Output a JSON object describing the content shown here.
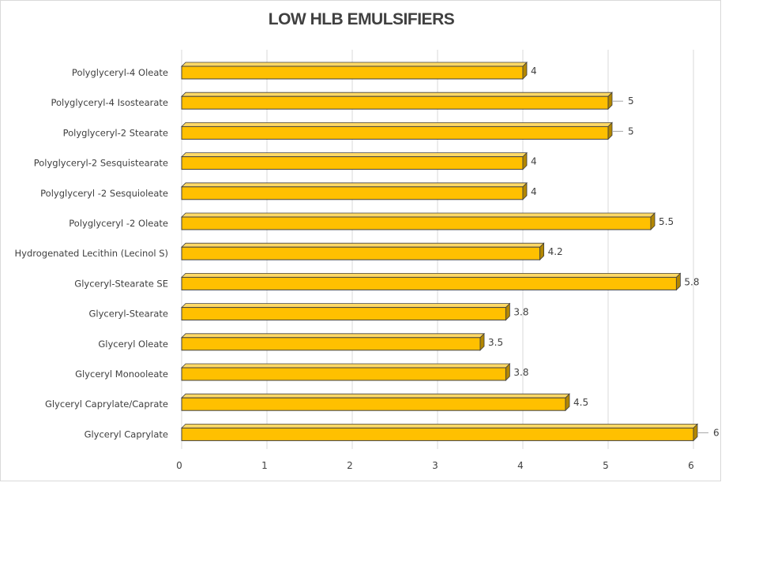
{
  "chart_data": {
    "type": "bar",
    "orientation": "horizontal",
    "title": "LOW HLB EMULSIFIERS",
    "categories": [
      "Polyglyceryl-4 Oleate",
      "Polyglyceryl-4 Isostearate",
      "Polyglyceryl-2 Stearate",
      "Polyglyceryl-2 Sesquistearate",
      "Polyglyceryl -2 Sesquioleate",
      "Polyglyceryl -2 Oleate",
      "Hydrogenated Lecithin (Lecinol S)",
      "Glyceryl-Stearate SE",
      "Glyceryl-Stearate",
      "Glyceryl Oleate",
      "Glyceryl Monooleate",
      "Glyceryl Caprylate/Caprate",
      "Glyceryl Caprylate"
    ],
    "values": [
      4,
      5,
      5,
      4,
      4,
      5.5,
      4.2,
      5.8,
      3.8,
      3.5,
      3.8,
      4.5,
      6
    ],
    "data_labels": [
      "4",
      "5",
      "5",
      "4",
      "4",
      "5.5",
      "4.2",
      "5.8",
      "3.8",
      "3.5",
      "3.8",
      "4.5",
      "6"
    ],
    "xlim": [
      0,
      6
    ],
    "x_ticks": [
      "0",
      "1",
      "2",
      "3",
      "4",
      "5",
      "6"
    ],
    "grid": true,
    "legend": "none",
    "bar_color": "#FFC000",
    "bar_outline": "#404040",
    "gridline_color": "#d9d9d9"
  }
}
